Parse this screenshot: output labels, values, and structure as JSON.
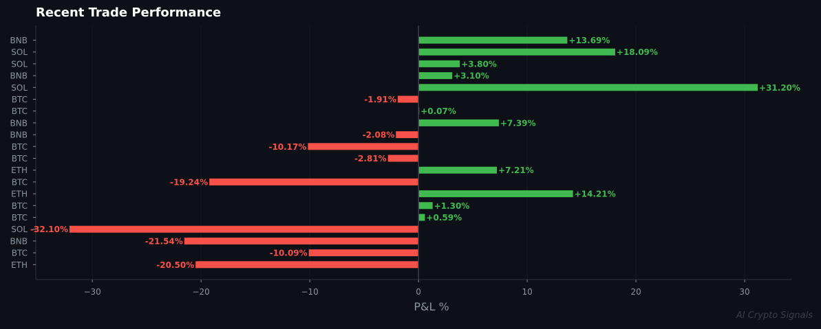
{
  "chart_data": {
    "type": "bar",
    "orientation": "horizontal",
    "title": "Recent Trade Performance",
    "xlabel": "P&L %",
    "ylabel": "",
    "xlim": [
      -35.2,
      34.3
    ],
    "xticks": [
      -30,
      -20,
      -10,
      0,
      10,
      20,
      30
    ],
    "xtick_labels": [
      "−30",
      "−20",
      "−10",
      "0",
      "10",
      "20",
      "30"
    ],
    "grid": "vertical, faint",
    "categories": [
      "BNB",
      "SOL",
      "SOL",
      "BNB",
      "SOL",
      "BTC",
      "BTC",
      "BNB",
      "BNB",
      "BTC",
      "BTC",
      "ETH",
      "BTC",
      "ETH",
      "BTC",
      "BTC",
      "SOL",
      "BNB",
      "BTC",
      "ETH"
    ],
    "values": [
      13.69,
      18.09,
      3.8,
      3.1,
      31.2,
      -1.91,
      0.07,
      7.39,
      -2.08,
      -10.17,
      -2.81,
      7.21,
      -19.24,
      14.21,
      1.3,
      0.59,
      -32.1,
      -21.54,
      -10.09,
      -20.5
    ],
    "data_labels": [
      "+13.69%",
      "+18.09%",
      "+3.80%",
      "+3.10%",
      "+31.20%",
      "-1.91%",
      "+0.07%",
      "+7.39%",
      "-2.08%",
      "-10.17%",
      "-2.81%",
      "+7.21%",
      "-19.24%",
      "+14.21%",
      "+1.30%",
      "+0.59%",
      "-32.10%",
      "-21.54%",
      "-10.09%",
      "-20.50%"
    ],
    "colors": {
      "positive": "#3fb950",
      "negative": "#f85149",
      "background": "#0d1017",
      "axis_text": "#8b949e"
    }
  },
  "watermark": "AI Crypto Signals"
}
